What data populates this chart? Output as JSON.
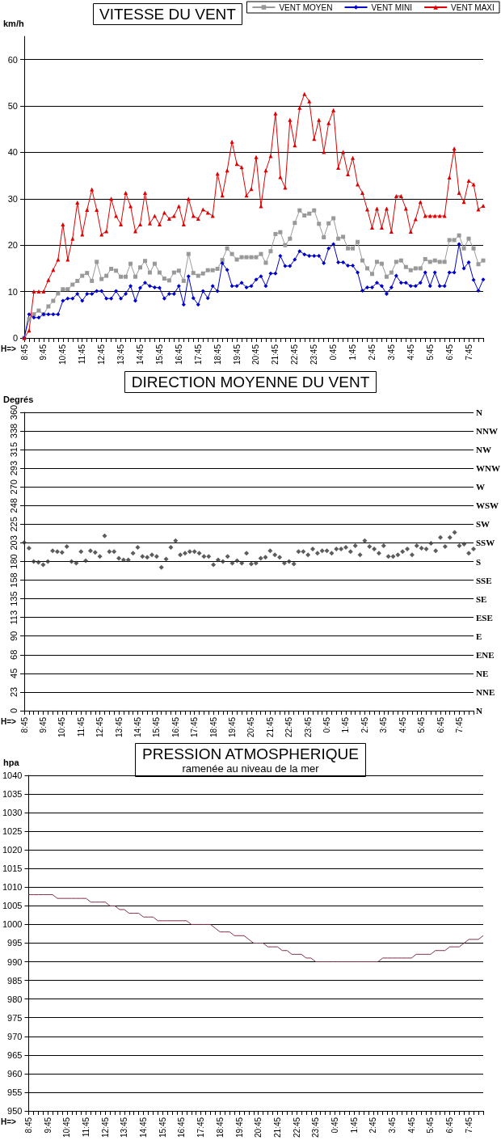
{
  "chart_data": [
    {
      "type": "line",
      "title": "VITESSE DU VENT",
      "ylabel": "km/h",
      "annotations": [
        "H=>"
      ],
      "legend": "top right",
      "grid": "y",
      "ylim": [
        0,
        65
      ],
      "yticks": [
        0,
        10,
        20,
        30,
        40,
        50,
        60
      ],
      "categories": [
        "8:45",
        null,
        null,
        null,
        "9:45",
        null,
        null,
        null,
        "10:45",
        null,
        null,
        null,
        "11:45",
        null,
        null,
        null,
        "12:45",
        null,
        null,
        null,
        "13:45",
        null,
        null,
        null,
        "14:45",
        null,
        null,
        null,
        "15:45",
        null,
        null,
        null,
        "16:45",
        null,
        null,
        null,
        "17:45",
        null,
        null,
        null,
        "18:45",
        null,
        null,
        null,
        "19:45",
        null,
        null,
        null,
        "20:45",
        null,
        null,
        null,
        "21:45",
        null,
        null,
        null,
        "22:45",
        null,
        null,
        null,
        "23:45",
        null,
        null,
        null,
        "0:45",
        null,
        null,
        null,
        "1:45",
        null,
        null,
        null,
        "2:45",
        null,
        null,
        null,
        "3:45",
        null,
        null,
        null,
        "4:45",
        null,
        null,
        null,
        "5:45",
        null,
        null,
        null,
        "6:45",
        null,
        null,
        null,
        "7:45",
        null,
        null,
        null
      ],
      "series": [
        {
          "name": "VENT MOYEN",
          "color": "#999999",
          "marker": "square",
          "values": [
            0,
            4,
            5.1,
            5.9,
            5.1,
            6.8,
            8,
            9.6,
            10.5,
            10.5,
            11.5,
            12.3,
            13.4,
            14,
            12.3,
            16.4,
            12.7,
            13.4,
            14.9,
            14.5,
            13.2,
            13.2,
            16,
            13.2,
            15.2,
            16.6,
            14.1,
            16,
            14.1,
            12.8,
            12.4,
            14.1,
            14.5,
            12.3,
            18.1,
            14,
            13.4,
            13.9,
            14.6,
            14.6,
            14.9,
            16.8,
            19.3,
            18.1,
            16.9,
            17.4,
            17.4,
            17.4,
            17.4,
            18.1,
            16.2,
            18.7,
            22.4,
            22.8,
            20,
            21.4,
            24.8,
            27.5,
            26.4,
            26.8,
            27.5,
            24.6,
            21.7,
            24.7,
            25.8,
            21.4,
            21.8,
            19.3,
            19.3,
            20.7,
            16.7,
            15,
            13.8,
            16.4,
            16,
            13.2,
            14.1,
            16.4,
            16.7,
            15.3,
            14.6,
            15,
            15,
            17,
            16.4,
            16.7,
            16.4,
            16.4,
            21.1,
            21.1,
            22.1,
            19.3,
            21.4,
            19.3,
            15.9,
            16.7
          ]
        },
        {
          "name": "VENT MINI",
          "color": "#0000cc",
          "marker": "diamond",
          "values": [
            0,
            5.1,
            4.4,
            4.4,
            5.1,
            5.1,
            5.1,
            5.1,
            8,
            8.5,
            8.5,
            9.5,
            8,
            9.5,
            9.5,
            10.1,
            10.1,
            8.5,
            8.5,
            10.1,
            8.5,
            9.5,
            11.2,
            8,
            10.8,
            11.9,
            11.2,
            10.9,
            10.8,
            8.5,
            9.5,
            9.5,
            11.2,
            7.2,
            13.3,
            8.6,
            7.2,
            10.1,
            8.6,
            11.2,
            10.1,
            16.1,
            14.7,
            11.2,
            11.2,
            11.9,
            10.9,
            11.2,
            12.6,
            13.3,
            11.2,
            13.9,
            13.9,
            17.7,
            15.5,
            15.5,
            16.9,
            18.7,
            18,
            17.7,
            17.7,
            17.7,
            16.1,
            19.3,
            20.2,
            16.3,
            16.3,
            15.6,
            15.6,
            14.1,
            10.2,
            10.9,
            10.9,
            11.9,
            11.2,
            9.5,
            10.9,
            13.4,
            11.9,
            11.9,
            11.2,
            11.2,
            11.9,
            14.1,
            11.2,
            14.1,
            11.2,
            11.2,
            14.1,
            14.1,
            20.2,
            15,
            16.3,
            12.5,
            10.2,
            12.6
          ]
        },
        {
          "name": "VENT MAXI",
          "color": "#dd0000",
          "marker": "triangle",
          "values": [
            0,
            1.6,
            10,
            10,
            10,
            12.5,
            14.7,
            16.9,
            24.5,
            16.9,
            21.4,
            29.2,
            22.3,
            27.6,
            32,
            27.6,
            22.3,
            23,
            30,
            26.3,
            24.5,
            31.3,
            28.4,
            23,
            24.5,
            31.3,
            24.7,
            26.3,
            24.5,
            27,
            25.7,
            26.3,
            28.4,
            24.5,
            30,
            26.3,
            25.7,
            27.7,
            27,
            26.3,
            35.4,
            30.7,
            36.1,
            42.3,
            37.5,
            36.8,
            30.7,
            32.1,
            39,
            28.4,
            36.1,
            39.2,
            48.4,
            34.7,
            32.4,
            47,
            41.5,
            49.6,
            52.6,
            51,
            42.9,
            47,
            40.1,
            46.3,
            49.1,
            36.7,
            40.1,
            35.3,
            38.8,
            33.1,
            31.3,
            27.7,
            23.8,
            27.9,
            23.8,
            27.9,
            22.9,
            30.6,
            30.6,
            27.9,
            22.9,
            25.6,
            29.3,
            26.3,
            26.3,
            26.3,
            26.3,
            26.3,
            34.6,
            40.8,
            31.3,
            29.3,
            33.9,
            33.1,
            27.7,
            28.5
          ]
        }
      ]
    },
    {
      "type": "scatter",
      "title": "DIRECTION MOYENNE DU VENT",
      "ylabel": "Degrés",
      "grid": "y",
      "marker": "diamond",
      "ylim": [
        0,
        360
      ],
      "annotations": [
        "H=>",
        "N",
        "NNE",
        "NE",
        "ENE",
        "E",
        "ESE",
        "SE",
        "SSE",
        "S",
        "SSW",
        "SW",
        "WSW",
        "W",
        "WNW",
        "NW",
        "NNW",
        "N"
      ],
      "yticks": [
        0,
        {
          "value": 22.5,
          "label": "23"
        },
        45,
        {
          "value": 67.5,
          "label": "68"
        },
        90,
        {
          "value": 112.5,
          "label": "113"
        },
        135,
        {
          "value": 157.5,
          "label": "158"
        },
        180,
        {
          "value": 202.5,
          "label": "203"
        },
        225,
        {
          "value": 247.5,
          "label": "248"
        },
        270,
        {
          "value": 292.5,
          "label": "293"
        },
        315,
        {
          "value": 337.5,
          "label": "338"
        },
        360
      ],
      "categories": [
        "8:45",
        null,
        null,
        null,
        "9:45",
        null,
        null,
        null,
        "10:45",
        null,
        null,
        null,
        "11:45",
        null,
        null,
        null,
        "12:45",
        null,
        null,
        null,
        "13:45",
        null,
        null,
        null,
        "14:45",
        null,
        null,
        null,
        "15:45",
        null,
        null,
        null,
        "16:45",
        null,
        null,
        null,
        "17:45",
        null,
        null,
        null,
        "18:45",
        null,
        null,
        null,
        "19:45",
        null,
        null,
        null,
        "20:45",
        null,
        null,
        null,
        "21:45",
        null,
        null,
        null,
        "22:45",
        null,
        null,
        null,
        "23:45",
        null,
        null,
        null,
        "0:45",
        null,
        null,
        null,
        "1:45",
        null,
        null,
        null,
        "2:45",
        null,
        null,
        null,
        "3:45",
        null,
        null,
        null,
        "4:45",
        null,
        null,
        null,
        "5:45",
        null,
        null,
        null,
        "6:45",
        null,
        null,
        null,
        "7:45",
        null,
        null,
        null
      ],
      "series": [
        {
          "color": "#333333",
          "values": [
            203,
            196,
            180,
            179,
            176,
            180,
            193,
            192,
            191,
            198,
            180,
            178,
            192,
            181,
            193,
            191,
            186,
            211,
            192,
            192,
            184,
            182,
            182,
            190,
            197,
            186,
            185,
            188,
            186,
            173,
            183,
            197,
            205,
            188,
            190,
            192,
            192,
            190,
            186,
            186,
            176,
            182,
            180,
            186,
            178,
            181,
            178,
            190,
            177,
            178,
            184,
            185,
            193,
            188,
            185,
            178,
            180,
            177,
            192,
            192,
            188,
            195,
            190,
            193,
            193,
            190,
            195,
            195,
            197,
            192,
            199,
            188,
            205,
            198,
            195,
            190,
            199,
            186,
            186,
            188,
            192,
            195,
            188,
            199,
            196,
            195,
            202,
            193,
            209,
            198,
            209,
            215,
            199,
            201,
            190,
            195
          ]
        }
      ]
    },
    {
      "type": "line",
      "title": "PRESSION ATMOSPHERIQUE",
      "subtitle": "ramenée au niveau de la mer",
      "ylabel": "hpa",
      "annotations": [
        "H=>"
      ],
      "grid": "y",
      "ylim": [
        950,
        1040
      ],
      "yticks": [
        950,
        955,
        960,
        965,
        970,
        975,
        980,
        985,
        990,
        995,
        1000,
        1005,
        1010,
        1015,
        1020,
        1025,
        1030,
        1035,
        1040
      ],
      "categories": [
        "8:45",
        null,
        null,
        null,
        "9:45",
        null,
        null,
        null,
        "10:45",
        null,
        null,
        null,
        "11:45",
        null,
        null,
        null,
        "12:45",
        null,
        null,
        null,
        "13:45",
        null,
        null,
        null,
        "14:45",
        null,
        null,
        null,
        "15:45",
        null,
        null,
        null,
        "16:45",
        null,
        null,
        null,
        "17:45",
        null,
        null,
        null,
        "18:45",
        null,
        null,
        null,
        "19:45",
        null,
        null,
        null,
        "20:45",
        null,
        null,
        null,
        "21:45",
        null,
        null,
        null,
        "22:45",
        null,
        null,
        null,
        "23:45",
        null,
        null,
        null,
        "0:45",
        null,
        null,
        null,
        "1:45",
        null,
        null,
        null,
        "2:45",
        null,
        null,
        null,
        "3:45",
        null,
        null,
        null,
        "4:45",
        null,
        null,
        null,
        "5:45",
        null,
        null,
        null,
        "6:45",
        null,
        null,
        null,
        "7:45",
        null,
        null,
        null
      ],
      "series": [
        {
          "color": "#803050",
          "values": [
            1008,
            1008,
            1008,
            1008,
            1008,
            1008,
            1007,
            1007,
            1007,
            1007,
            1007,
            1007,
            1007,
            1006,
            1006,
            1006,
            1006,
            1005,
            1005,
            1004,
            1004,
            1003,
            1003,
            1003,
            1002,
            1002,
            1002,
            1001,
            1001,
            1001,
            1001,
            1001,
            1001,
            1001,
            1000,
            1000,
            1000,
            1000,
            1000,
            999,
            998,
            998,
            998,
            997,
            997,
            997,
            996,
            995,
            995,
            995,
            994,
            994,
            994,
            993,
            993,
            992,
            992,
            992,
            991,
            991,
            990,
            990,
            990,
            990,
            990,
            990,
            990,
            990,
            990,
            990,
            990,
            990,
            990,
            990,
            991,
            991,
            991,
            991,
            991,
            991,
            991,
            992,
            992,
            992,
            992,
            993,
            993,
            993,
            994,
            994,
            994,
            995,
            996,
            996,
            996,
            997
          ]
        }
      ]
    }
  ]
}
